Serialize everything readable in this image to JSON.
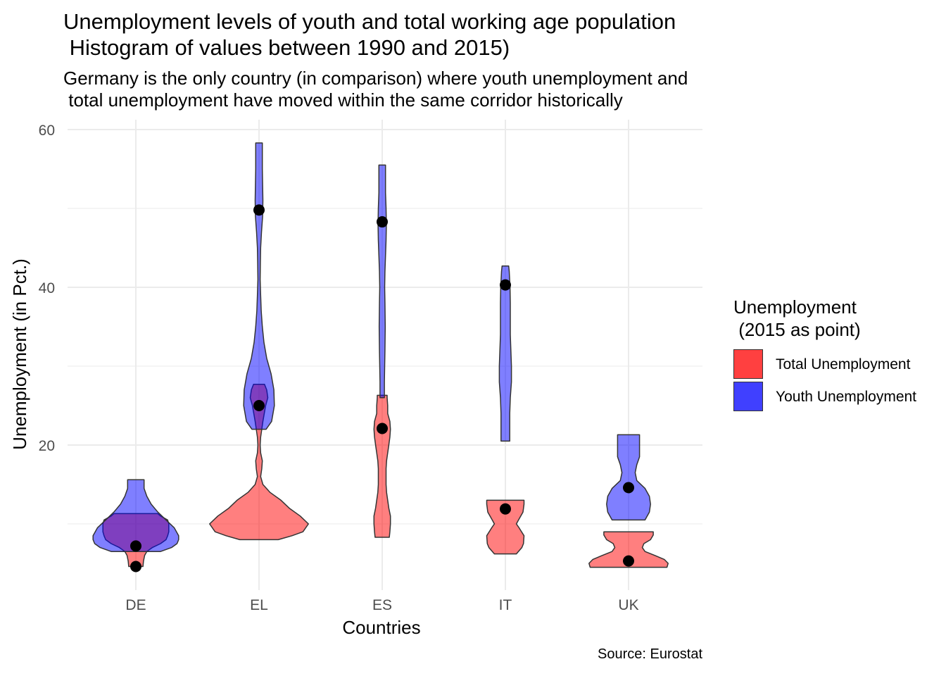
{
  "chart_data": {
    "type": "violin",
    "title": "Unemployment levels of youth and total working age population\n Histogram of values between 1990 and 2015)",
    "subtitle": "Germany is the only country (in comparison) where youth unemployment and\n total unemployment have moved within the same corridor historically",
    "caption": "Source: Eurostat",
    "xlabel": "Countries",
    "ylabel": "Unemployment (in Pct.)",
    "categories": [
      "DE",
      "EL",
      "ES",
      "IT",
      "UK"
    ],
    "ylim": [
      4,
      62
    ],
    "yticks": [
      20,
      40,
      60
    ],
    "grid": true,
    "legend": {
      "title": "Unemployment\n (2015 as point)",
      "placement": "right",
      "entries": [
        {
          "label": "Total Unemployment",
          "color": "#ff0000"
        },
        {
          "label": "Youth Unemployment",
          "color": "#0000ff"
        }
      ]
    },
    "series": [
      {
        "name": "Total Unemployment",
        "color": "#ff0000",
        "point_2015": [
          4.6,
          25.0,
          22.1,
          11.9,
          5.3
        ],
        "violins": [
          [
            [
              4.6,
              0.13
            ],
            [
              5.3,
              0.14
            ],
            [
              6.0,
              0.16
            ],
            [
              6.5,
              0.2
            ],
            [
              7.0,
              0.3
            ],
            [
              7.5,
              0.45
            ],
            [
              8.0,
              0.55
            ],
            [
              8.5,
              0.58
            ],
            [
              9.0,
              0.6
            ],
            [
              10.0,
              0.6
            ],
            [
              10.5,
              0.58
            ],
            [
              11.0,
              0.45
            ],
            [
              11.3,
              0.4
            ]
          ],
          [
            [
              8.0,
              0.35
            ],
            [
              8.5,
              0.6
            ],
            [
              9.0,
              0.8
            ],
            [
              10.0,
              0.9
            ],
            [
              11.0,
              0.75
            ],
            [
              12.0,
              0.55
            ],
            [
              13.0,
              0.4
            ],
            [
              14.0,
              0.2
            ],
            [
              15.0,
              0.07
            ],
            [
              16.0,
              0.03
            ],
            [
              17.0,
              0.05
            ],
            [
              18.0,
              0.06
            ],
            [
              19.0,
              0.03
            ],
            [
              20.0,
              0.02
            ],
            [
              21.0,
              0.03
            ],
            [
              23.0,
              0.07
            ],
            [
              25.0,
              0.12
            ],
            [
              26.0,
              0.16
            ],
            [
              27.0,
              0.14
            ],
            [
              27.7,
              0.1
            ]
          ],
          [
            [
              8.3,
              0.13
            ],
            [
              9.0,
              0.14
            ],
            [
              10.0,
              0.15
            ],
            [
              11.0,
              0.15
            ],
            [
              12.0,
              0.12
            ],
            [
              13.0,
              0.1
            ],
            [
              14.0,
              0.08
            ],
            [
              15.0,
              0.07
            ],
            [
              16.0,
              0.07
            ],
            [
              17.0,
              0.07
            ],
            [
              18.0,
              0.08
            ],
            [
              19.0,
              0.1
            ],
            [
              20.0,
              0.12
            ],
            [
              21.0,
              0.14
            ],
            [
              22.0,
              0.15
            ],
            [
              23.0,
              0.14
            ],
            [
              24.0,
              0.1
            ],
            [
              25.0,
              0.1
            ],
            [
              26.0,
              0.09
            ],
            [
              26.3,
              0.09
            ]
          ],
          [
            [
              6.2,
              0.2
            ],
            [
              7.0,
              0.3
            ],
            [
              7.5,
              0.33
            ],
            [
              8.5,
              0.34
            ],
            [
              9.5,
              0.25
            ],
            [
              10.0,
              0.2
            ],
            [
              10.5,
              0.24
            ],
            [
              11.5,
              0.32
            ],
            [
              12.5,
              0.34
            ],
            [
              13.0,
              0.34
            ]
          ],
          [
            [
              4.5,
              0.7
            ],
            [
              5.0,
              0.72
            ],
            [
              5.5,
              0.65
            ],
            [
              6.0,
              0.48
            ],
            [
              6.5,
              0.3
            ],
            [
              7.0,
              0.25
            ],
            [
              7.5,
              0.28
            ],
            [
              8.0,
              0.4
            ],
            [
              8.6,
              0.45
            ],
            [
              9.0,
              0.45
            ]
          ]
        ]
      },
      {
        "name": "Youth Unemployment",
        "color": "#0000ff",
        "point_2015": [
          7.2,
          49.8,
          48.3,
          40.3,
          14.6
        ],
        "violins": [
          [
            [
              6.5,
              0.45
            ],
            [
              7.0,
              0.65
            ],
            [
              7.5,
              0.75
            ],
            [
              8.0,
              0.78
            ],
            [
              8.5,
              0.78
            ],
            [
              9.5,
              0.7
            ],
            [
              10.5,
              0.55
            ],
            [
              11.5,
              0.4
            ],
            [
              12.5,
              0.28
            ],
            [
              13.5,
              0.2
            ],
            [
              14.5,
              0.15
            ],
            [
              15.6,
              0.15
            ]
          ],
          [
            [
              22.0,
              0.13
            ],
            [
              23.0,
              0.23
            ],
            [
              25.0,
              0.28
            ],
            [
              27.0,
              0.27
            ],
            [
              29.0,
              0.22
            ],
            [
              31.0,
              0.14
            ],
            [
              33.0,
              0.09
            ],
            [
              35.0,
              0.06
            ],
            [
              37.0,
              0.04
            ],
            [
              39.0,
              0.03
            ],
            [
              41.0,
              0.02
            ],
            [
              43.0,
              0.025
            ],
            [
              45.0,
              0.03
            ],
            [
              47.0,
              0.045
            ],
            [
              49.0,
              0.065
            ],
            [
              51.0,
              0.07
            ],
            [
              53.0,
              0.065
            ],
            [
              55.0,
              0.06
            ],
            [
              57.0,
              0.06
            ],
            [
              58.3,
              0.06
            ]
          ],
          [
            [
              26.0,
              0.04
            ],
            [
              28.0,
              0.04
            ],
            [
              30.0,
              0.045
            ],
            [
              32.0,
              0.05
            ],
            [
              35.0,
              0.055
            ],
            [
              38.0,
              0.05
            ],
            [
              40.0,
              0.045
            ],
            [
              42.0,
              0.05
            ],
            [
              44.0,
              0.06
            ],
            [
              46.0,
              0.07
            ],
            [
              48.0,
              0.075
            ],
            [
              50.0,
              0.07
            ],
            [
              52.0,
              0.06
            ],
            [
              54.0,
              0.06
            ],
            [
              55.5,
              0.06
            ]
          ],
          [
            [
              20.5,
              0.08
            ],
            [
              22.0,
              0.08
            ],
            [
              24.0,
              0.08
            ],
            [
              26.0,
              0.09
            ],
            [
              28.0,
              0.11
            ],
            [
              30.0,
              0.11
            ],
            [
              32.0,
              0.1
            ],
            [
              34.0,
              0.09
            ],
            [
              36.0,
              0.09
            ],
            [
              38.0,
              0.09
            ],
            [
              40.0,
              0.085
            ],
            [
              42.0,
              0.07
            ],
            [
              42.7,
              0.06
            ]
          ],
          [
            [
              10.5,
              0.3
            ],
            [
              11.5,
              0.38
            ],
            [
              12.5,
              0.4
            ],
            [
              13.5,
              0.38
            ],
            [
              14.5,
              0.3
            ],
            [
              15.5,
              0.15
            ],
            [
              16.5,
              0.12
            ],
            [
              17.5,
              0.15
            ],
            [
              18.5,
              0.2
            ],
            [
              20.0,
              0.2
            ],
            [
              21.3,
              0.2
            ]
          ]
        ]
      }
    ]
  }
}
